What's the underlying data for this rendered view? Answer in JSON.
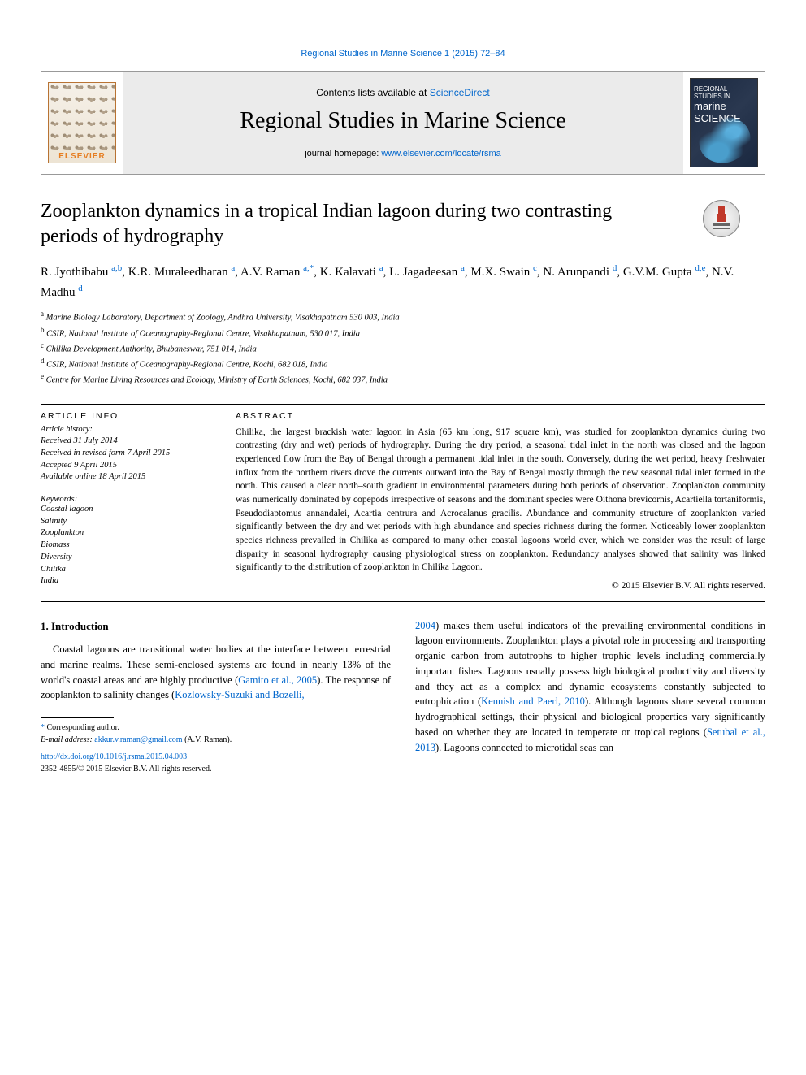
{
  "running_header": "Regional Studies in Marine Science 1 (2015) 72–84",
  "masthead": {
    "elsevier_label": "ELSEVIER",
    "contents_prefix": "Contents lists available at ",
    "contents_link": "ScienceDirect",
    "journal_name": "Regional Studies in Marine Science",
    "homepage_prefix": "journal homepage: ",
    "homepage_link": "www.elsevier.com/locate/rsma",
    "cover_small": "REGIONAL STUDIES IN",
    "cover_big1": "marine",
    "cover_big2": "SCIENCE"
  },
  "title": "Zooplankton dynamics in a tropical Indian lagoon during two contrasting periods of hydrography",
  "authors_html": "R. Jyothibabu <sup>a,b</sup>, K.R. Muraleedharan <sup>a</sup>, A.V. Raman <sup>a,*</sup>, K. Kalavati <sup>a</sup>, L. Jagadeesan <sup>a</sup>, M.X. Swain <sup>c</sup>, N. Arunpandi <sup>d</sup>, G.V.M. Gupta <sup>d,e</sup>, N.V. Madhu <sup>d</sup>",
  "affiliations": [
    {
      "sup": "a",
      "text": "Marine Biology Laboratory, Department of Zoology, Andhra University, Visakhapatnam 530 003, India"
    },
    {
      "sup": "b",
      "text": "CSIR, National Institute of Oceanography-Regional Centre, Visakhapatnam, 530 017, India"
    },
    {
      "sup": "c",
      "text": "Chilika Development Authority, Bhubaneswar, 751 014, India"
    },
    {
      "sup": "d",
      "text": "CSIR, National Institute of Oceanography-Regional Centre, Kochi, 682 018, India"
    },
    {
      "sup": "e",
      "text": "Centre for Marine Living Resources and Ecology, Ministry of Earth Sciences, Kochi, 682 037, India"
    }
  ],
  "article_info": {
    "heading": "ARTICLE INFO",
    "history": [
      "Article history:",
      "Received 31 July 2014",
      "Received in revised form 7 April 2015",
      "Accepted 9 April 2015",
      "Available online 18 April 2015"
    ],
    "keywords_heading": "Keywords:",
    "keywords": [
      "Coastal lagoon",
      "Salinity",
      "Zooplankton",
      "Biomass",
      "Diversity",
      "Chilika",
      "India"
    ]
  },
  "abstract": {
    "heading": "ABSTRACT",
    "text": "Chilika, the largest brackish water lagoon in Asia (65 km long, 917 square km), was studied for zooplankton dynamics during two contrasting (dry and wet) periods of hydrography. During the dry period, a seasonal tidal inlet in the north was closed and the lagoon experienced flow from the Bay of Bengal through a permanent tidal inlet in the south. Conversely, during the wet period, heavy freshwater influx from the northern rivers drove the currents outward into the Bay of Bengal mostly through the new seasonal tidal inlet formed in the north. This caused a clear north–south gradient in environmental parameters during both periods of observation. Zooplankton community was numerically dominated by copepods irrespective of seasons and the dominant species were Oithona brevicornis, Acartiella tortaniformis, Pseudodiaptomus annandalei, Acartia centrura and Acrocalanus gracilis. Abundance and community structure of zooplankton varied significantly between the dry and wet periods with high abundance and species richness during the former. Noticeably lower zooplankton species richness prevailed in Chilika as compared to many other coastal lagoons world over, which we consider was the result of large disparity in seasonal hydrography causing physiological stress on zooplankton. Redundancy analyses showed that salinity was linked significantly to the distribution of zooplankton in Chilika Lagoon.",
    "copyright": "© 2015 Elsevier B.V. All rights reserved."
  },
  "body": {
    "section_number": "1.",
    "section_title": "Introduction",
    "paragraph": "Coastal lagoons are transitional water bodies at the interface between terrestrial and marine realms. These semi-enclosed systems are found in nearly 13% of the world's coastal areas and are highly productive (Gamito et al., 2005). The response of zooplankton to salinity changes (Kozlowsky-Suzuki and Bozelli,",
    "ref1": "Gamito et al., 2005",
    "ref2": "Kozlowsky-Suzuki and Bozelli,",
    "ref3": "2004",
    "ref4": "Kennish and Paerl, 2010",
    "ref5": "et al., 2013",
    "ref6": "Setubal",
    "col2_text1": ") makes them useful indicators of the prevailing environmental conditions in lagoon environments. Zooplankton plays a pivotal role in processing and transporting organic carbon from autotrophs to higher trophic levels including commercially important fishes. Lagoons usually possess high biological productivity and diversity and they act as a complex and dynamic ecosystems constantly subjected to eutrophication (",
    "col2_text2": "). Although lagoons share several common hydrographical settings, their physical and biological properties vary significantly based on whether they are located in temperate or tropical regions (",
    "col2_text3": "). Lagoons connected to microtidal seas can"
  },
  "footnotes": {
    "corr": "Corresponding author.",
    "email_label": "E-mail address:",
    "email": "akkur.v.raman@gmail.com",
    "attribution": "(A.V. Raman).",
    "doi": "http://dx.doi.org/10.1016/j.rsma.2015.04.003",
    "rights": "2352-4855/© 2015 Elsevier B.V. All rights reserved."
  },
  "colors": {
    "link": "#0066cc",
    "elsevier_orange": "#e67e22",
    "cover_bg": "#1a2840"
  }
}
